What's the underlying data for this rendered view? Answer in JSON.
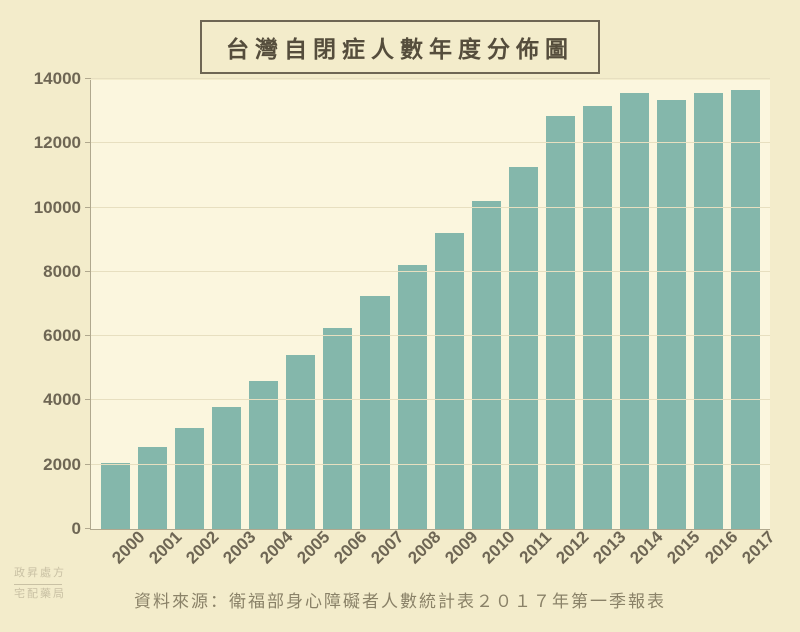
{
  "chart": {
    "type": "bar",
    "title": "台灣自閉症人數年度分佈圖",
    "title_fontsize": 23,
    "title_color": "#554d3c",
    "title_border_color": "#6e6654",
    "categories": [
      "2000",
      "2001",
      "2002",
      "2003",
      "2004",
      "2005",
      "2006",
      "2007",
      "2008",
      "2009",
      "2010",
      "2011",
      "2012",
      "2013",
      "2014",
      "2015",
      "2016",
      "2017"
    ],
    "values": [
      2050,
      2550,
      3150,
      3800,
      4600,
      5400,
      6250,
      7250,
      8200,
      9200,
      10200,
      11250,
      12850,
      13150,
      13550,
      13350,
      13550,
      13650
    ],
    "bar_color": "#84b7ab",
    "background_color": "#f3eccb",
    "plot_background_color": "#fbf6de",
    "grid_color": "#e7dfc0",
    "axis_color": "#b0a88e",
    "tick_label_color": "#6e6654",
    "ylim": [
      0,
      14000
    ],
    "yticks": [
      0,
      2000,
      4000,
      6000,
      8000,
      10000,
      12000,
      14000
    ],
    "label_fontsize": 17,
    "bar_gap_ratio": 0.22,
    "x_label_rotation_deg": -45
  },
  "source": {
    "text": "資料來源：衛福部身心障礙者人數統計表２０１７年第一季報表",
    "color": "#8a8268",
    "fontsize": 17
  },
  "watermark": {
    "line1": "政昇處方",
    "line2": "宅配藥局",
    "color": "#c9c1a4",
    "fontsize": 11
  }
}
